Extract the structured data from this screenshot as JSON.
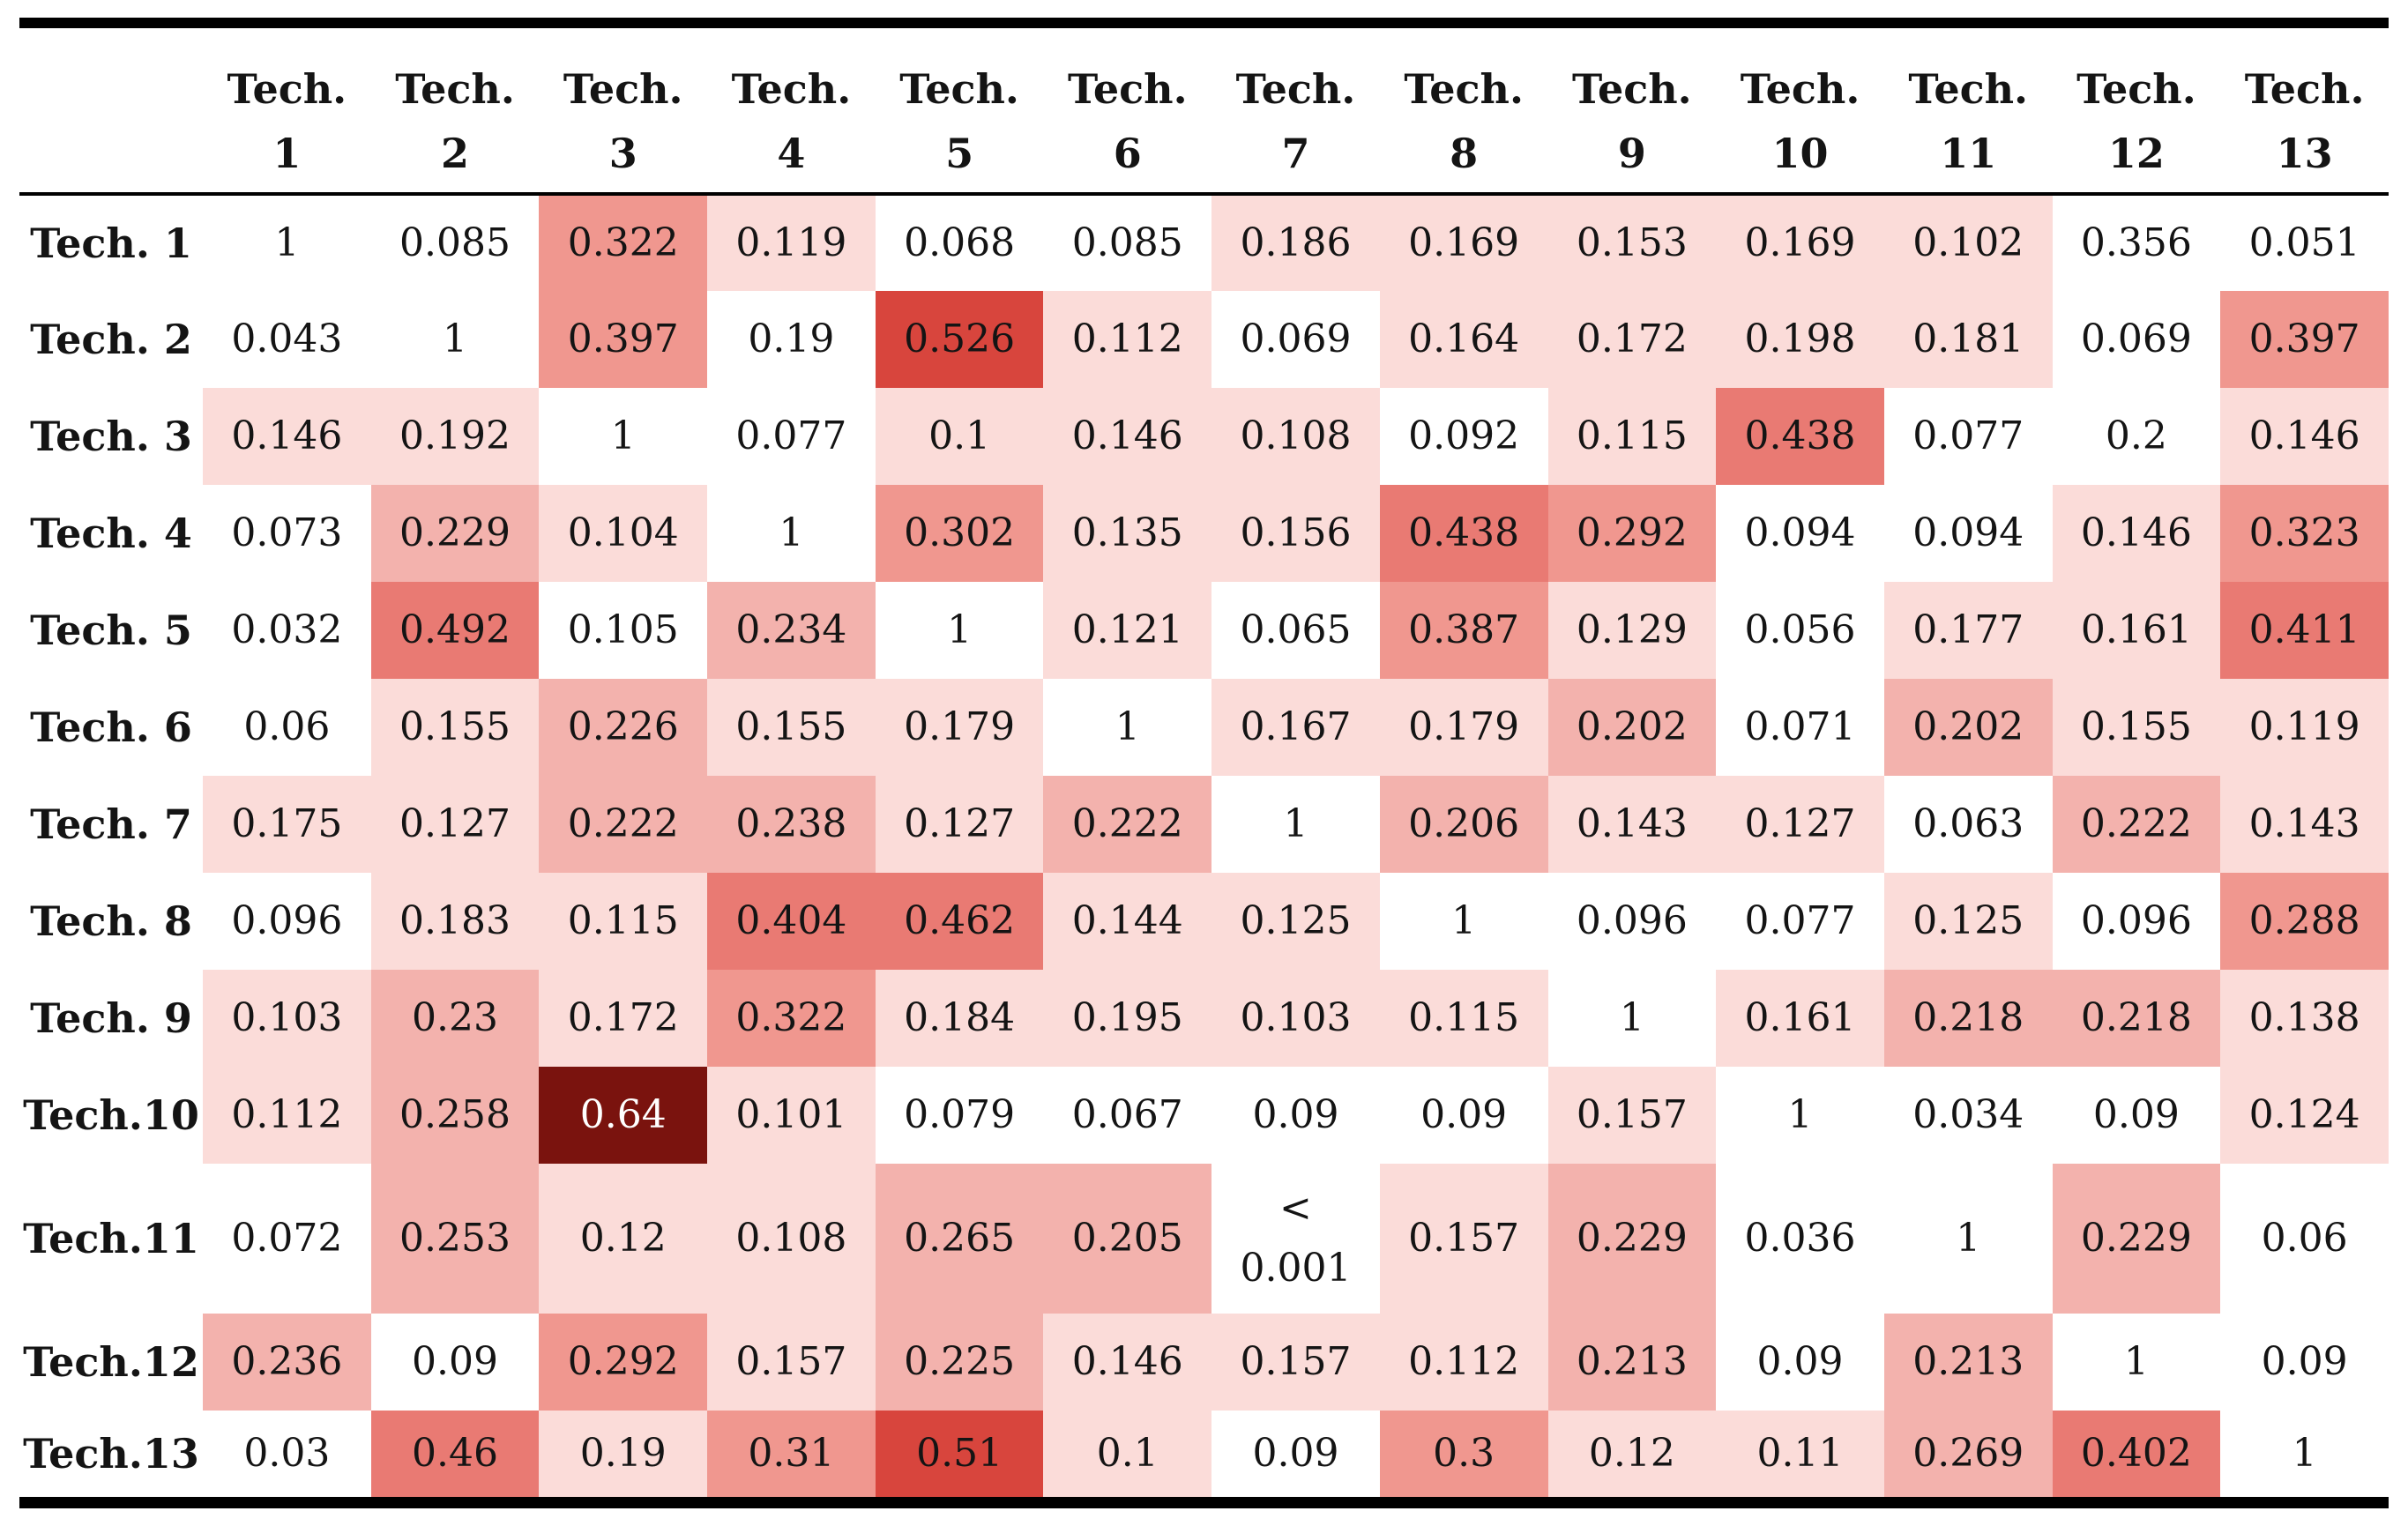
{
  "colors": {
    "white": "#ffffff",
    "light": "#fbdcd9",
    "medium": "#f3b2ad",
    "salmon": "#f0978f",
    "darksalmon": "#e97a73",
    "red": "#d8453d",
    "maroon": "#7a130e",
    "cell_text": "#141414",
    "cell_text_inverse": "#ffffff",
    "rule": "#000000"
  },
  "chart_data": {
    "type": "heatmap",
    "title": "",
    "column_header_prefix": "Tech.",
    "column_numbers": [
      "1",
      "2",
      "3",
      "4",
      "5",
      "6",
      "7",
      "8",
      "9",
      "10",
      "11",
      "12",
      "13"
    ],
    "legend_position": "none",
    "grid": false,
    "rows": [
      {
        "label": "Tech. 1",
        "cells": [
          {
            "v": "1",
            "c": "white"
          },
          {
            "v": "0.085",
            "c": "white"
          },
          {
            "v": "0.322",
            "c": "salmon"
          },
          {
            "v": "0.119",
            "c": "light"
          },
          {
            "v": "0.068",
            "c": "white"
          },
          {
            "v": "0.085",
            "c": "white"
          },
          {
            "v": "0.186",
            "c": "light"
          },
          {
            "v": "0.169",
            "c": "light"
          },
          {
            "v": "0.153",
            "c": "light"
          },
          {
            "v": "0.169",
            "c": "light"
          },
          {
            "v": "0.102",
            "c": "light"
          },
          {
            "v": "0.356",
            "c": "white"
          },
          {
            "v": "0.051",
            "c": "white"
          }
        ]
      },
      {
        "label": "Tech. 2",
        "cells": [
          {
            "v": "0.043",
            "c": "white"
          },
          {
            "v": "1",
            "c": "white"
          },
          {
            "v": "0.397",
            "c": "salmon"
          },
          {
            "v": "0.19",
            "c": "white"
          },
          {
            "v": "0.526",
            "c": "red"
          },
          {
            "v": "0.112",
            "c": "light"
          },
          {
            "v": "0.069",
            "c": "white"
          },
          {
            "v": "0.164",
            "c": "light"
          },
          {
            "v": "0.172",
            "c": "light"
          },
          {
            "v": "0.198",
            "c": "light"
          },
          {
            "v": "0.181",
            "c": "light"
          },
          {
            "v": "0.069",
            "c": "white"
          },
          {
            "v": "0.397",
            "c": "salmon"
          }
        ]
      },
      {
        "label": "Tech. 3",
        "cells": [
          {
            "v": "0.146",
            "c": "light"
          },
          {
            "v": "0.192",
            "c": "light"
          },
          {
            "v": "1",
            "c": "white"
          },
          {
            "v": "0.077",
            "c": "white"
          },
          {
            "v": "0.1",
            "c": "light"
          },
          {
            "v": "0.146",
            "c": "light"
          },
          {
            "v": "0.108",
            "c": "light"
          },
          {
            "v": "0.092",
            "c": "white"
          },
          {
            "v": "0.115",
            "c": "light"
          },
          {
            "v": "0.438",
            "c": "darksalmon"
          },
          {
            "v": "0.077",
            "c": "white"
          },
          {
            "v": "0.2",
            "c": "white"
          },
          {
            "v": "0.146",
            "c": "light"
          }
        ]
      },
      {
        "label": "Tech. 4",
        "cells": [
          {
            "v": "0.073",
            "c": "white"
          },
          {
            "v": "0.229",
            "c": "medium"
          },
          {
            "v": "0.104",
            "c": "light"
          },
          {
            "v": "1",
            "c": "white"
          },
          {
            "v": "0.302",
            "c": "salmon"
          },
          {
            "v": "0.135",
            "c": "light"
          },
          {
            "v": "0.156",
            "c": "light"
          },
          {
            "v": "0.438",
            "c": "darksalmon"
          },
          {
            "v": "0.292",
            "c": "salmon"
          },
          {
            "v": "0.094",
            "c": "white"
          },
          {
            "v": "0.094",
            "c": "white"
          },
          {
            "v": "0.146",
            "c": "light"
          },
          {
            "v": "0.323",
            "c": "salmon"
          }
        ]
      },
      {
        "label": "Tech. 5",
        "cells": [
          {
            "v": "0.032",
            "c": "white"
          },
          {
            "v": "0.492",
            "c": "darksalmon"
          },
          {
            "v": "0.105",
            "c": "white"
          },
          {
            "v": "0.234",
            "c": "medium"
          },
          {
            "v": "1",
            "c": "white"
          },
          {
            "v": "0.121",
            "c": "light"
          },
          {
            "v": "0.065",
            "c": "white"
          },
          {
            "v": "0.387",
            "c": "salmon"
          },
          {
            "v": "0.129",
            "c": "light"
          },
          {
            "v": "0.056",
            "c": "white"
          },
          {
            "v": "0.177",
            "c": "light"
          },
          {
            "v": "0.161",
            "c": "light"
          },
          {
            "v": "0.411",
            "c": "darksalmon"
          }
        ]
      },
      {
        "label": "Tech. 6",
        "cells": [
          {
            "v": "0.06",
            "c": "white"
          },
          {
            "v": "0.155",
            "c": "light"
          },
          {
            "v": "0.226",
            "c": "medium"
          },
          {
            "v": "0.155",
            "c": "light"
          },
          {
            "v": "0.179",
            "c": "light"
          },
          {
            "v": "1",
            "c": "white"
          },
          {
            "v": "0.167",
            "c": "light"
          },
          {
            "v": "0.179",
            "c": "light"
          },
          {
            "v": "0.202",
            "c": "medium"
          },
          {
            "v": "0.071",
            "c": "white"
          },
          {
            "v": "0.202",
            "c": "medium"
          },
          {
            "v": "0.155",
            "c": "light"
          },
          {
            "v": "0.119",
            "c": "light"
          }
        ]
      },
      {
        "label": "Tech. 7",
        "cells": [
          {
            "v": "0.175",
            "c": "light"
          },
          {
            "v": "0.127",
            "c": "light"
          },
          {
            "v": "0.222",
            "c": "medium"
          },
          {
            "v": "0.238",
            "c": "medium"
          },
          {
            "v": "0.127",
            "c": "light"
          },
          {
            "v": "0.222",
            "c": "medium"
          },
          {
            "v": "1",
            "c": "white"
          },
          {
            "v": "0.206",
            "c": "medium"
          },
          {
            "v": "0.143",
            "c": "light"
          },
          {
            "v": "0.127",
            "c": "light"
          },
          {
            "v": "0.063",
            "c": "white"
          },
          {
            "v": "0.222",
            "c": "medium"
          },
          {
            "v": "0.143",
            "c": "light"
          }
        ]
      },
      {
        "label": "Tech. 8",
        "cells": [
          {
            "v": "0.096",
            "c": "white"
          },
          {
            "v": "0.183",
            "c": "light"
          },
          {
            "v": "0.115",
            "c": "light"
          },
          {
            "v": "0.404",
            "c": "darksalmon"
          },
          {
            "v": "0.462",
            "c": "darksalmon"
          },
          {
            "v": "0.144",
            "c": "light"
          },
          {
            "v": "0.125",
            "c": "light"
          },
          {
            "v": "1",
            "c": "white"
          },
          {
            "v": "0.096",
            "c": "white"
          },
          {
            "v": "0.077",
            "c": "white"
          },
          {
            "v": "0.125",
            "c": "light"
          },
          {
            "v": "0.096",
            "c": "white"
          },
          {
            "v": "0.288",
            "c": "salmon"
          }
        ]
      },
      {
        "label": "Tech. 9",
        "cells": [
          {
            "v": "0.103",
            "c": "light"
          },
          {
            "v": "0.23",
            "c": "medium"
          },
          {
            "v": "0.172",
            "c": "light"
          },
          {
            "v": "0.322",
            "c": "salmon"
          },
          {
            "v": "0.184",
            "c": "light"
          },
          {
            "v": "0.195",
            "c": "light"
          },
          {
            "v": "0.103",
            "c": "light"
          },
          {
            "v": "0.115",
            "c": "light"
          },
          {
            "v": "1",
            "c": "white"
          },
          {
            "v": "0.161",
            "c": "light"
          },
          {
            "v": "0.218",
            "c": "medium"
          },
          {
            "v": "0.218",
            "c": "medium"
          },
          {
            "v": "0.138",
            "c": "light"
          }
        ]
      },
      {
        "label": "Tech.10",
        "cells": [
          {
            "v": "0.112",
            "c": "light"
          },
          {
            "v": "0.258",
            "c": "medium"
          },
          {
            "v": "0.64",
            "c": "maroon"
          },
          {
            "v": "0.101",
            "c": "light"
          },
          {
            "v": "0.079",
            "c": "white"
          },
          {
            "v": "0.067",
            "c": "white"
          },
          {
            "v": "0.09",
            "c": "white"
          },
          {
            "v": "0.09",
            "c": "white"
          },
          {
            "v": "0.157",
            "c": "light"
          },
          {
            "v": "1",
            "c": "white"
          },
          {
            "v": "0.034",
            "c": "white"
          },
          {
            "v": "0.09",
            "c": "white"
          },
          {
            "v": "0.124",
            "c": "light"
          }
        ]
      },
      {
        "label": "Tech.11",
        "cells": [
          {
            "v": "0.072",
            "c": "white"
          },
          {
            "v": "0.253",
            "c": "medium"
          },
          {
            "v": "0.12",
            "c": "light"
          },
          {
            "v": "0.108",
            "c": "light"
          },
          {
            "v": "0.265",
            "c": "medium"
          },
          {
            "v": "0.205",
            "c": "medium"
          },
          {
            "v": "<\n0.001",
            "c": "white"
          },
          {
            "v": "0.157",
            "c": "light"
          },
          {
            "v": "0.229",
            "c": "medium"
          },
          {
            "v": "0.036",
            "c": "white"
          },
          {
            "v": "1",
            "c": "white"
          },
          {
            "v": "0.229",
            "c": "medium"
          },
          {
            "v": "0.06",
            "c": "white"
          }
        ]
      },
      {
        "label": "Tech.12",
        "cells": [
          {
            "v": "0.236",
            "c": "medium"
          },
          {
            "v": "0.09",
            "c": "white"
          },
          {
            "v": "0.292",
            "c": "salmon"
          },
          {
            "v": "0.157",
            "c": "light"
          },
          {
            "v": "0.225",
            "c": "medium"
          },
          {
            "v": "0.146",
            "c": "light"
          },
          {
            "v": "0.157",
            "c": "light"
          },
          {
            "v": "0.112",
            "c": "light"
          },
          {
            "v": "0.213",
            "c": "medium"
          },
          {
            "v": "0.09",
            "c": "white"
          },
          {
            "v": "0.213",
            "c": "medium"
          },
          {
            "v": "1",
            "c": "white"
          },
          {
            "v": "0.09",
            "c": "white"
          }
        ]
      },
      {
        "label": "Tech.13",
        "cells": [
          {
            "v": "0.03",
            "c": "white"
          },
          {
            "v": "0.46",
            "c": "darksalmon"
          },
          {
            "v": "0.19",
            "c": "light"
          },
          {
            "v": "0.31",
            "c": "salmon"
          },
          {
            "v": "0.51",
            "c": "red"
          },
          {
            "v": "0.1",
            "c": "light"
          },
          {
            "v": "0.09",
            "c": "white"
          },
          {
            "v": "0.3",
            "c": "salmon"
          },
          {
            "v": "0.12",
            "c": "light"
          },
          {
            "v": "0.11",
            "c": "light"
          },
          {
            "v": "0.269",
            "c": "medium"
          },
          {
            "v": "0.402",
            "c": "darksalmon"
          },
          {
            "v": "1",
            "c": "white"
          }
        ]
      }
    ]
  }
}
